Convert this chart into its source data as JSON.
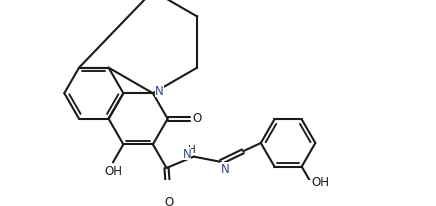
{
  "background_color": "#ffffff",
  "line_color": "#1a1a1a",
  "text_color": "#1a1a1a",
  "blue_color": "#2c4a8c",
  "line_width": 1.5,
  "font_size": 8.5,
  "figsize": [
    4.36,
    2.07
  ],
  "dpi": 100,
  "xlim": [
    0,
    10
  ],
  "ylim": [
    0,
    4.75
  ]
}
